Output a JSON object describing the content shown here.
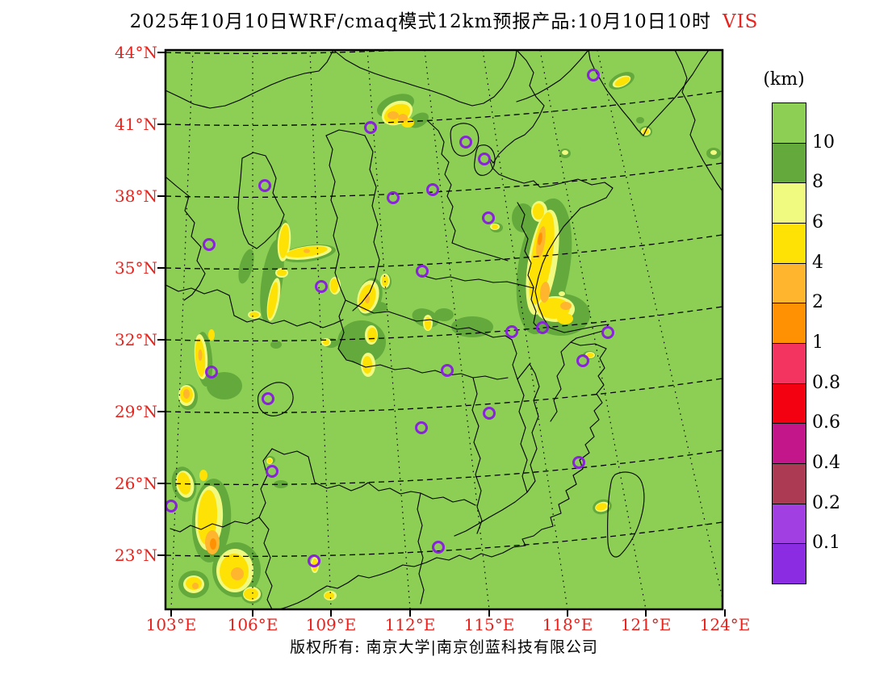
{
  "title": {
    "text": "2025年10月10日WRF/cmaq模式12km预报产品:10月10日10时",
    "highlight": "VIS"
  },
  "footer": {
    "text": "版权所有: 南京大学|南京创蓝科技有限公司"
  },
  "axes": {
    "lat_labels": [
      "44°N",
      "41°N",
      "38°N",
      "35°N",
      "32°N",
      "29°N",
      "26°N",
      "23°N"
    ],
    "lon_labels": [
      "103°E",
      "106°E",
      "109°E",
      "112°E",
      "115°E",
      "118°E",
      "121°E",
      "124°E"
    ]
  },
  "colorbar": {
    "unit": "(km)",
    "tick_labels": [
      "10",
      "8",
      "6",
      "4",
      "2",
      "1",
      "0.8",
      "0.6",
      "0.4",
      "0.2",
      "0.1"
    ],
    "segment_colors": [
      "#8dce55",
      "#63a93c",
      "#f0fa80",
      "#ffe205",
      "#ffb52e",
      "#ff9103",
      "#f43460",
      "#f30011",
      "#c2168a",
      "#ab3a52",
      "#a13fe2",
      "#8b2be2"
    ]
  },
  "colors": {
    "map_background": "#8dce55",
    "vis_8_10": "#63a93c",
    "vis_6_8": "#f0fa80",
    "vis_4_6": "#ffe205",
    "vis_2_4": "#ffb52e",
    "vis_1_2": "#ff9103",
    "boundary_line": "#000000",
    "grid_line": "#000000",
    "city_marker": "#8a22dd",
    "axis_label": "#e8231d",
    "title_text": "#000000"
  },
  "chart_data": {
    "type": "heatmap",
    "title": "2025年10月10日WRF/cmaq模式12km预报产品:10月10日10时 VIS",
    "variable": "visibility",
    "unit": "km",
    "xlabel_ticks": [
      103,
      106,
      109,
      112,
      115,
      118,
      121,
      124
    ],
    "ylabel_ticks": [
      44,
      41,
      38,
      35,
      32,
      29,
      26,
      23
    ],
    "x_range_deg_E": [
      103,
      124
    ],
    "y_range_deg_N": [
      20.6,
      44.4
    ],
    "legend_position": "right",
    "grid": "dashed lat/lon graticule every 3 degrees",
    "color_scale_boundaries_km": [
      10,
      8,
      6,
      4,
      2,
      1,
      0.8,
      0.6,
      0.4,
      0.2,
      0.1
    ],
    "field_summary": "Background visibility >10 km (green) over most of domain; reduced visibility 4-8 km (yellow) bands over Shanxi/Shaanxi (34-35N,106-112E), central Shandong-Jiangsu (32-37N,116-119E) with 2-4 km cores, NW patch near 41.5N/111E with 2-4 km core, and SW Yunnan-Guizhou region (22-26N,103-106E) with 2-4 km cores; small spots near Liaodong, Bohai coast and west of Taiwan."
  }
}
